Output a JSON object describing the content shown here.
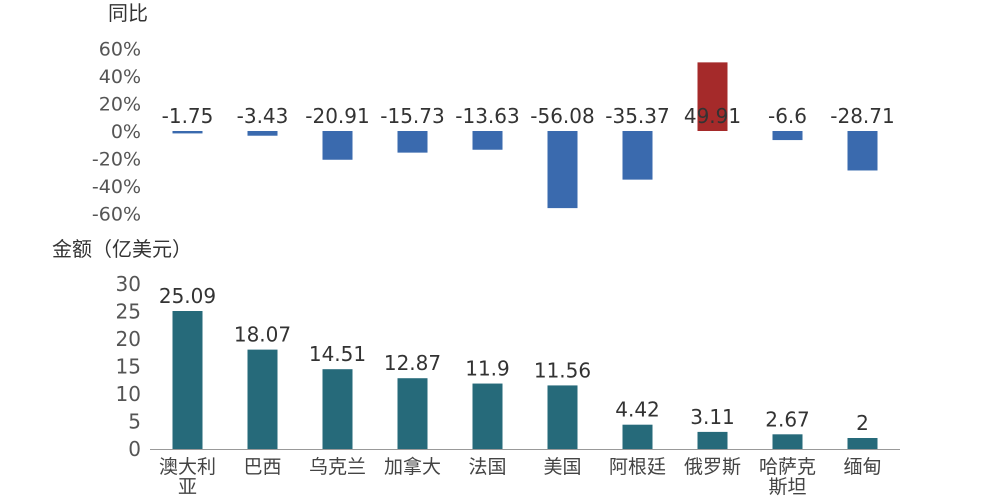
{
  "chart_data": [
    {
      "type": "bar",
      "title": "",
      "ylabel": "同比",
      "xlabel": "",
      "categories": [
        "澳大利亚",
        "巴西",
        "乌克兰",
        "加拿大",
        "法国",
        "美国",
        "阿根廷",
        "俄罗斯",
        "哈萨克斯坦",
        "缅甸"
      ],
      "values": [
        -1.75,
        -3.43,
        -20.91,
        -15.73,
        -13.63,
        -56.08,
        -35.37,
        49.91,
        -6.6,
        -28.71
      ],
      "value_labels": [
        "-1.75",
        "-3.43",
        "-20.91",
        "-15.73",
        "-13.63",
        "-56.08",
        "-35.37",
        "49.91",
        "-6.6",
        "-28.71"
      ],
      "ylim": [
        -60,
        60
      ],
      "yticks": [
        "60%",
        "40%",
        "20%",
        "0%",
        "-20%",
        "-40%",
        "-60%"
      ],
      "ytick_values": [
        60,
        40,
        20,
        0,
        -20,
        -40,
        -60
      ],
      "colors": {
        "negative": "#3a6aae",
        "positive": "#a52a2a"
      },
      "grid": false
    },
    {
      "type": "bar",
      "title": "",
      "ylabel": "金额（亿美元）",
      "xlabel": "",
      "categories": [
        "澳大利亚",
        "巴西",
        "乌克兰",
        "加拿大",
        "法国",
        "美国",
        "阿根廷",
        "俄罗斯",
        "哈萨克斯坦",
        "缅甸"
      ],
      "category_labels": [
        [
          "澳大利",
          "亚"
        ],
        [
          "巴西"
        ],
        [
          "乌克兰"
        ],
        [
          "加拿大"
        ],
        [
          "法国"
        ],
        [
          "美国"
        ],
        [
          "阿根廷"
        ],
        [
          "俄罗斯"
        ],
        [
          "哈萨克",
          "斯坦"
        ],
        [
          "缅甸"
        ]
      ],
      "values": [
        25.09,
        18.07,
        14.51,
        12.87,
        11.9,
        11.56,
        4.42,
        3.11,
        2.67,
        2
      ],
      "value_labels": [
        "25.09",
        "18.07",
        "14.51",
        "12.87",
        "11.9",
        "11.56",
        "4.42",
        "3.11",
        "2.67",
        "2"
      ],
      "ylim": [
        0,
        30
      ],
      "yticks": [
        "30",
        "25",
        "20",
        "15",
        "10",
        "5",
        "0"
      ],
      "ytick_values": [
        30,
        25,
        20,
        15,
        10,
        5,
        0
      ],
      "colors": {
        "bar": "#266a7a",
        "axis": "#999999"
      },
      "grid": false
    }
  ]
}
